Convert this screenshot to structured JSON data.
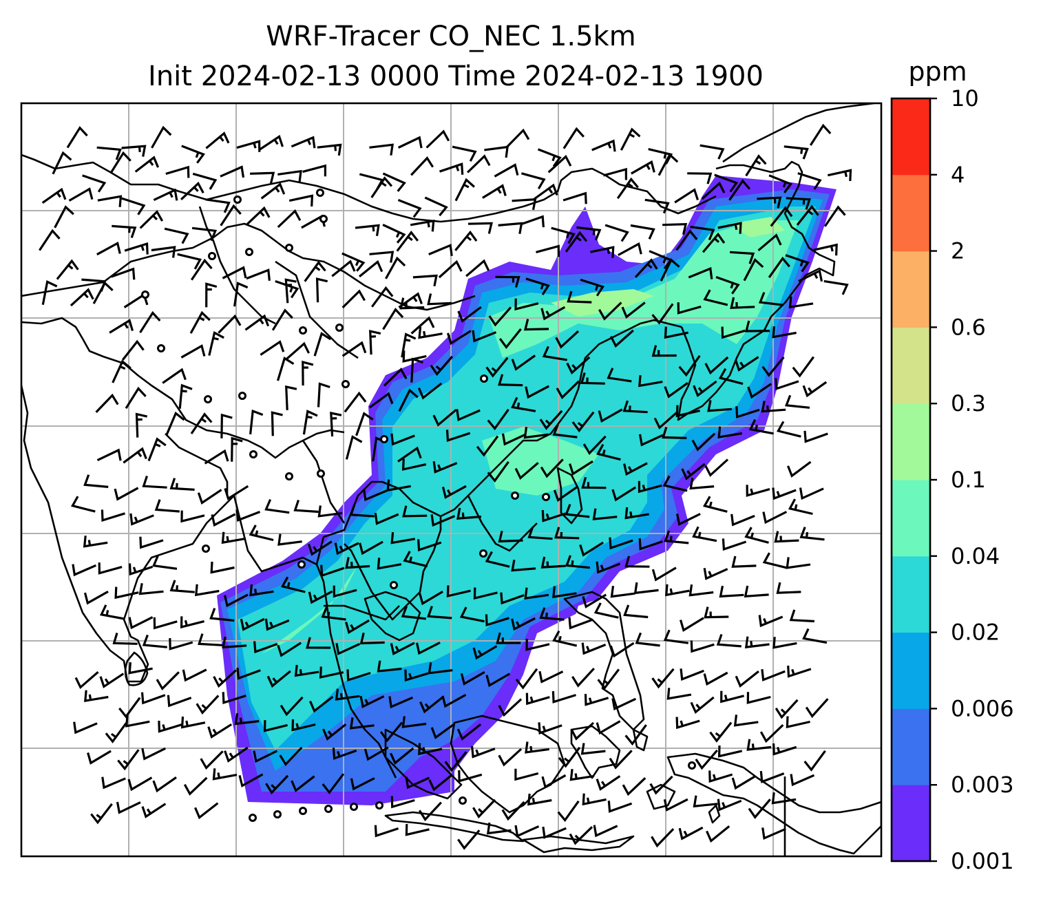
{
  "figure": {
    "title_line1": "WRF-Tracer CO_NEC 1.5km",
    "title_line2": "Init 2024-02-13 0000 Time 2024-02-13 1900"
  },
  "colorbar": {
    "label": "ppm",
    "ticks": [
      "10",
      "4",
      "2",
      "0.6",
      "0.3",
      "0.1",
      "0.04",
      "0.02",
      "0.006",
      "0.003",
      "0.001"
    ],
    "colors_bottom_to_top": [
      "#6a2dfa",
      "#3a72f0",
      "#08a7e8",
      "#2cd9d6",
      "#6cf7bd",
      "#a2f99a",
      "#d2e38a",
      "#fbb066",
      "#fd6f3c",
      "#fb2a18"
    ]
  },
  "map": {
    "gridline_color": "#b0b0b0",
    "coastline_color": "#000000",
    "field_legend": {
      "low": "#6a2dfa",
      "mid_low": "#08a7e8",
      "mid": "#2cd9d6",
      "mid_high": "#6cf7bd",
      "high": "#a2f99a"
    }
  }
}
